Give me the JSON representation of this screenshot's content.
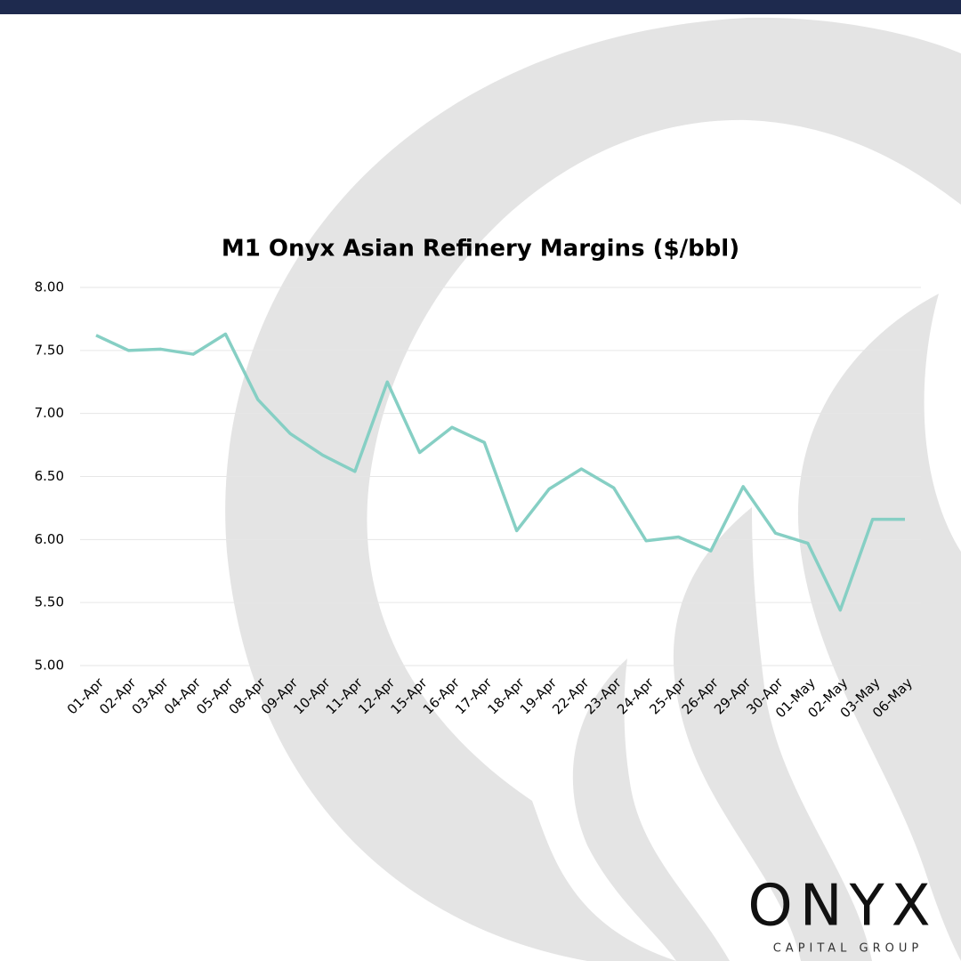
{
  "chart_data": {
    "type": "line",
    "title": "M1 Onyx Asian Refinery Margins ($/bbl)",
    "categories": [
      "01-Apr",
      "02-Apr",
      "03-Apr",
      "04-Apr",
      "05-Apr",
      "08-Apr",
      "09-Apr",
      "10-Apr",
      "11-Apr",
      "12-Apr",
      "15-Apr",
      "16-Apr",
      "17-Apr",
      "18-Apr",
      "19-Apr",
      "22-Apr",
      "23-Apr",
      "24-Apr",
      "25-Apr",
      "26-Apr",
      "29-Apr",
      "30-Apr",
      "01-May",
      "02-May",
      "03-May",
      "06-May"
    ],
    "values": [
      7.62,
      7.5,
      7.51,
      7.47,
      7.63,
      7.11,
      6.84,
      6.67,
      6.54,
      7.25,
      6.69,
      6.89,
      6.77,
      6.07,
      6.4,
      6.56,
      6.41,
      5.99,
      6.02,
      5.91,
      6.42,
      6.05,
      5.97,
      5.44,
      6.16,
      6.16
    ],
    "color": "#86cfc4",
    "ylim": [
      5,
      8
    ],
    "yticks": [
      {
        "value": 5,
        "label": "5.00"
      },
      {
        "value": 5.5,
        "label": "5.50"
      },
      {
        "value": 6,
        "label": "6.00"
      },
      {
        "value": 6.5,
        "label": "6.50"
      },
      {
        "value": 7,
        "label": "7.00"
      },
      {
        "value": 7.5,
        "label": "7.50"
      },
      {
        "value": 8,
        "label": "8.00"
      }
    ],
    "grid": true
  },
  "logo": {
    "name": "ONYX",
    "tagline": "CAPITAL GROUP"
  }
}
